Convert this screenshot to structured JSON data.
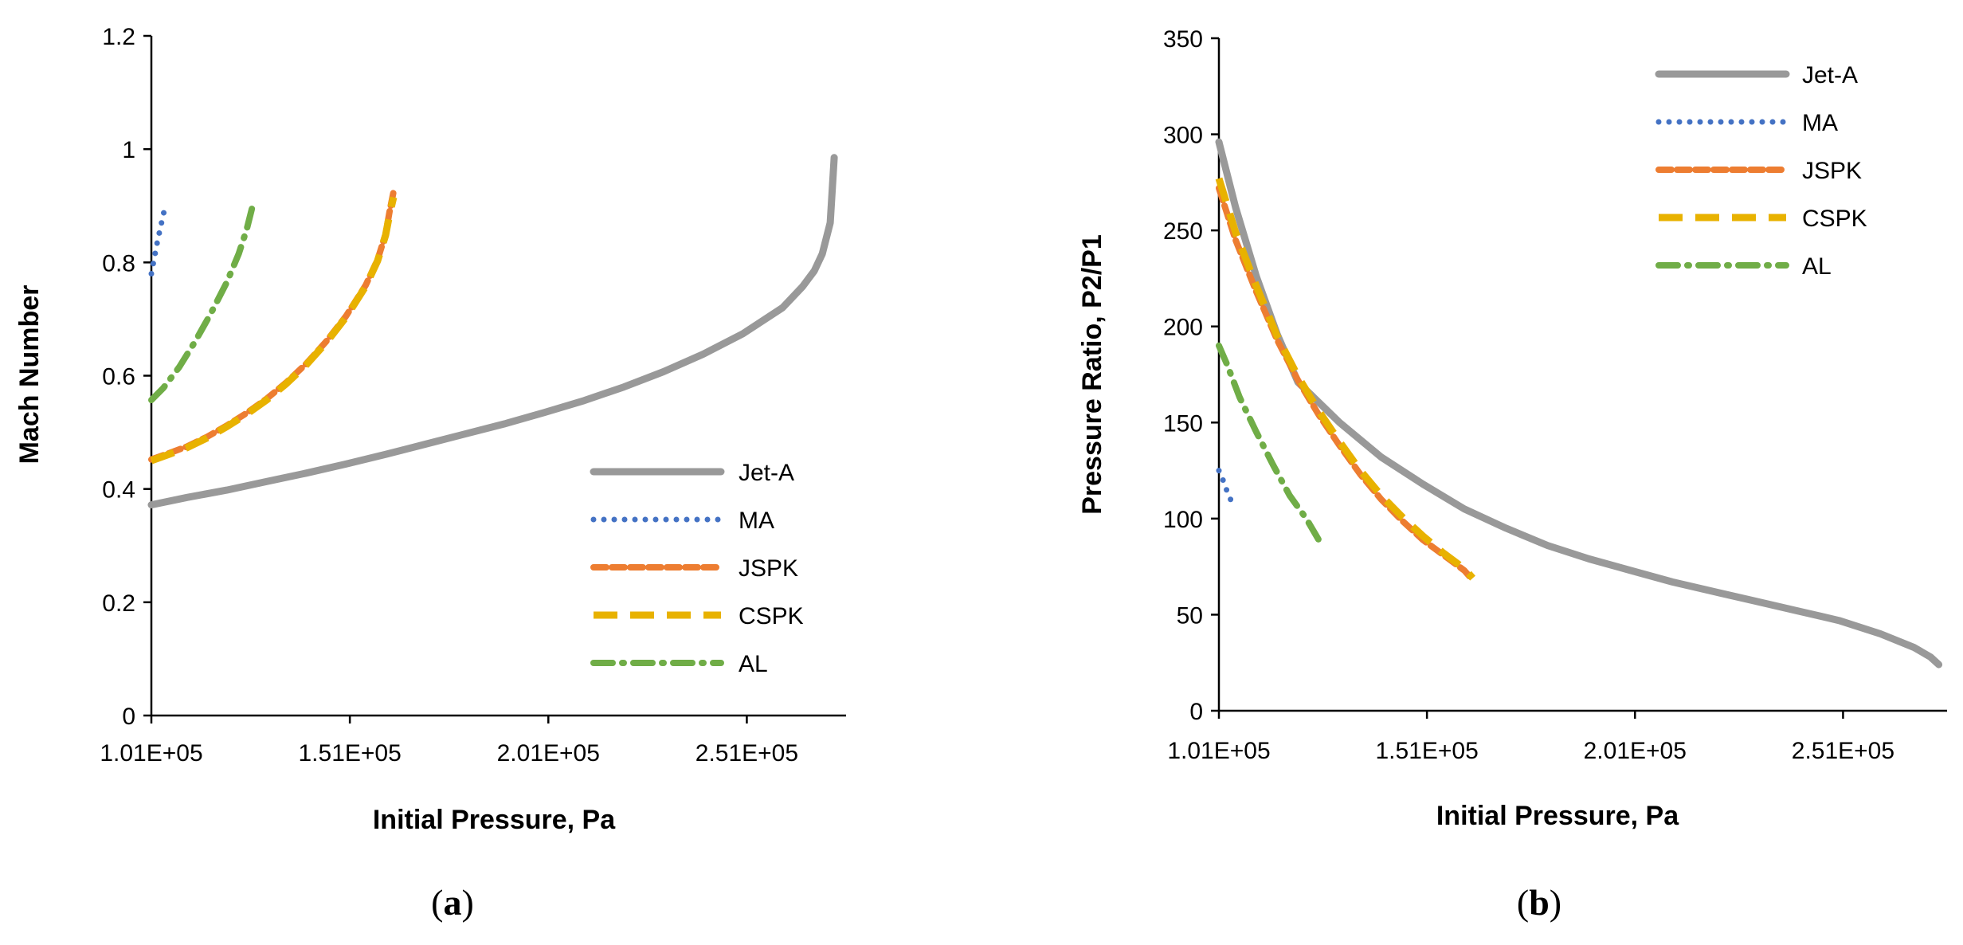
{
  "chart_data": [
    {
      "id": "a",
      "type": "line",
      "panel_label": {
        "open": "(",
        "letter": "a",
        "close": ")"
      },
      "xlabel": "Initial Pressure, Pa",
      "ylabel": "Mach Number",
      "xlim": [
        101000,
        276000
      ],
      "ylim": [
        0,
        1.2
      ],
      "xticks": [
        101000,
        151000,
        201000,
        251000
      ],
      "xtick_labels": [
        "1.01E+05",
        "1.51E+05",
        "2.01E+05",
        "2.51E+05"
      ],
      "yticks": [
        0,
        0.2,
        0.4,
        0.6,
        0.8,
        1,
        1.2
      ],
      "ytick_labels": [
        "0",
        "0.2",
        "0.4",
        "0.6",
        "0.8",
        "1",
        "1.2"
      ],
      "legend_position": "bottom-right",
      "series": [
        {
          "name": "Jet-A",
          "color": "#999999",
          "style": "solid",
          "x": [
            101000,
            110000,
            120000,
            130000,
            140000,
            150000,
            160000,
            170000,
            180000,
            190000,
            200000,
            210000,
            220000,
            230000,
            240000,
            250000,
            260000,
            265000,
            268000,
            270000,
            272000,
            273000
          ],
          "y": [
            0.372,
            0.385,
            0.398,
            0.413,
            0.428,
            0.444,
            0.461,
            0.479,
            0.497,
            0.515,
            0.535,
            0.556,
            0.58,
            0.607,
            0.638,
            0.674,
            0.72,
            0.757,
            0.785,
            0.815,
            0.87,
            0.985
          ]
        },
        {
          "name": "MA",
          "color": "#4472C4",
          "style": "dotted",
          "x": [
            101000,
            101800,
            102600,
            103400,
            104200
          ],
          "y": [
            0.78,
            0.81,
            0.84,
            0.865,
            0.89
          ]
        },
        {
          "name": "JSPK",
          "color": "#ED7D31",
          "style": "dashed",
          "x": [
            101000,
            105000,
            110000,
            115000,
            120000,
            125000,
            130000,
            135000,
            140000,
            145000,
            150000,
            155000,
            158000,
            160000,
            161000,
            162000
          ],
          "y": [
            0.452,
            0.462,
            0.475,
            0.492,
            0.512,
            0.534,
            0.559,
            0.588,
            0.621,
            0.66,
            0.705,
            0.76,
            0.805,
            0.85,
            0.89,
            0.925
          ]
        },
        {
          "name": "CSPK",
          "color": "#E8B200",
          "style": "longdash",
          "x": [
            101000,
            105000,
            110000,
            115000,
            120000,
            125000,
            130000,
            135000,
            140000,
            145000,
            150000,
            155000,
            158000,
            160000,
            161000,
            162000
          ],
          "y": [
            0.45,
            0.46,
            0.473,
            0.49,
            0.51,
            0.532,
            0.557,
            0.586,
            0.619,
            0.658,
            0.703,
            0.758,
            0.803,
            0.848,
            0.885,
            0.915
          ]
        },
        {
          "name": "AL",
          "color": "#70AD47",
          "style": "dashdot",
          "x": [
            101000,
            104000,
            108000,
            112000,
            116000,
            120000,
            123000,
            125000,
            126500
          ],
          "y": [
            0.557,
            0.578,
            0.615,
            0.66,
            0.71,
            0.765,
            0.815,
            0.858,
            0.9
          ]
        }
      ]
    },
    {
      "id": "b",
      "type": "line",
      "panel_label": {
        "open": "(",
        "letter": "b",
        "close": ")"
      },
      "xlabel": "Initial Pressure, Pa",
      "ylabel": "Pressure Ratio, P2/P1",
      "xlim": [
        101000,
        276000
      ],
      "ylim": [
        0,
        350
      ],
      "xticks": [
        101000,
        151000,
        201000,
        251000
      ],
      "xtick_labels": [
        "1.01E+05",
        "1.51E+05",
        "2.01E+05",
        "2.51E+05"
      ],
      "yticks": [
        0,
        50,
        100,
        150,
        200,
        250,
        300,
        350
      ],
      "ytick_labels": [
        "0",
        "50",
        "100",
        "150",
        "200",
        "250",
        "300",
        "350"
      ],
      "legend_position": "top-right",
      "series": [
        {
          "name": "Jet-A",
          "color": "#999999",
          "style": "solid",
          "x": [
            101000,
            105000,
            110000,
            115000,
            120000,
            130000,
            140000,
            150000,
            160000,
            170000,
            180000,
            190000,
            200000,
            210000,
            220000,
            230000,
            240000,
            250000,
            260000,
            268000,
            272000,
            274000
          ],
          "y": [
            296,
            262,
            226,
            196,
            171,
            150,
            132,
            118,
            105,
            95,
            86,
            79,
            73,
            67,
            62,
            57,
            52,
            47,
            40,
            33,
            28,
            24
          ]
        },
        {
          "name": "MA",
          "color": "#4472C4",
          "style": "dotted",
          "x": [
            101000,
            102000,
            103000,
            104200
          ],
          "y": [
            125,
            120,
            114,
            108
          ]
        },
        {
          "name": "JSPK",
          "color": "#ED7D31",
          "style": "dashed",
          "x": [
            101000,
            105000,
            110000,
            115000,
            120000,
            125000,
            130000,
            135000,
            140000,
            145000,
            150000,
            155000,
            160000,
            162000
          ],
          "y": [
            272,
            245,
            218,
            193,
            172,
            154,
            138,
            123,
            110,
            99,
            89,
            81,
            73,
            68
          ]
        },
        {
          "name": "CSPK",
          "color": "#E8B200",
          "style": "longdash",
          "x": [
            101000,
            105000,
            110000,
            115000,
            120000,
            125000,
            130000,
            135000,
            140000,
            145000,
            150000,
            155000,
            160000,
            162000
          ],
          "y": [
            277,
            249,
            221,
            195,
            174,
            156,
            140,
            125,
            112,
            101,
            91,
            82,
            74,
            69
          ]
        },
        {
          "name": "AL",
          "color": "#70AD47",
          "style": "dashdot",
          "x": [
            101000,
            103000,
            106000,
            110000,
            114000,
            118000,
            122000,
            125500
          ],
          "y": [
            190,
            180,
            163,
            145,
            128,
            112,
            100,
            87
          ]
        }
      ]
    }
  ]
}
